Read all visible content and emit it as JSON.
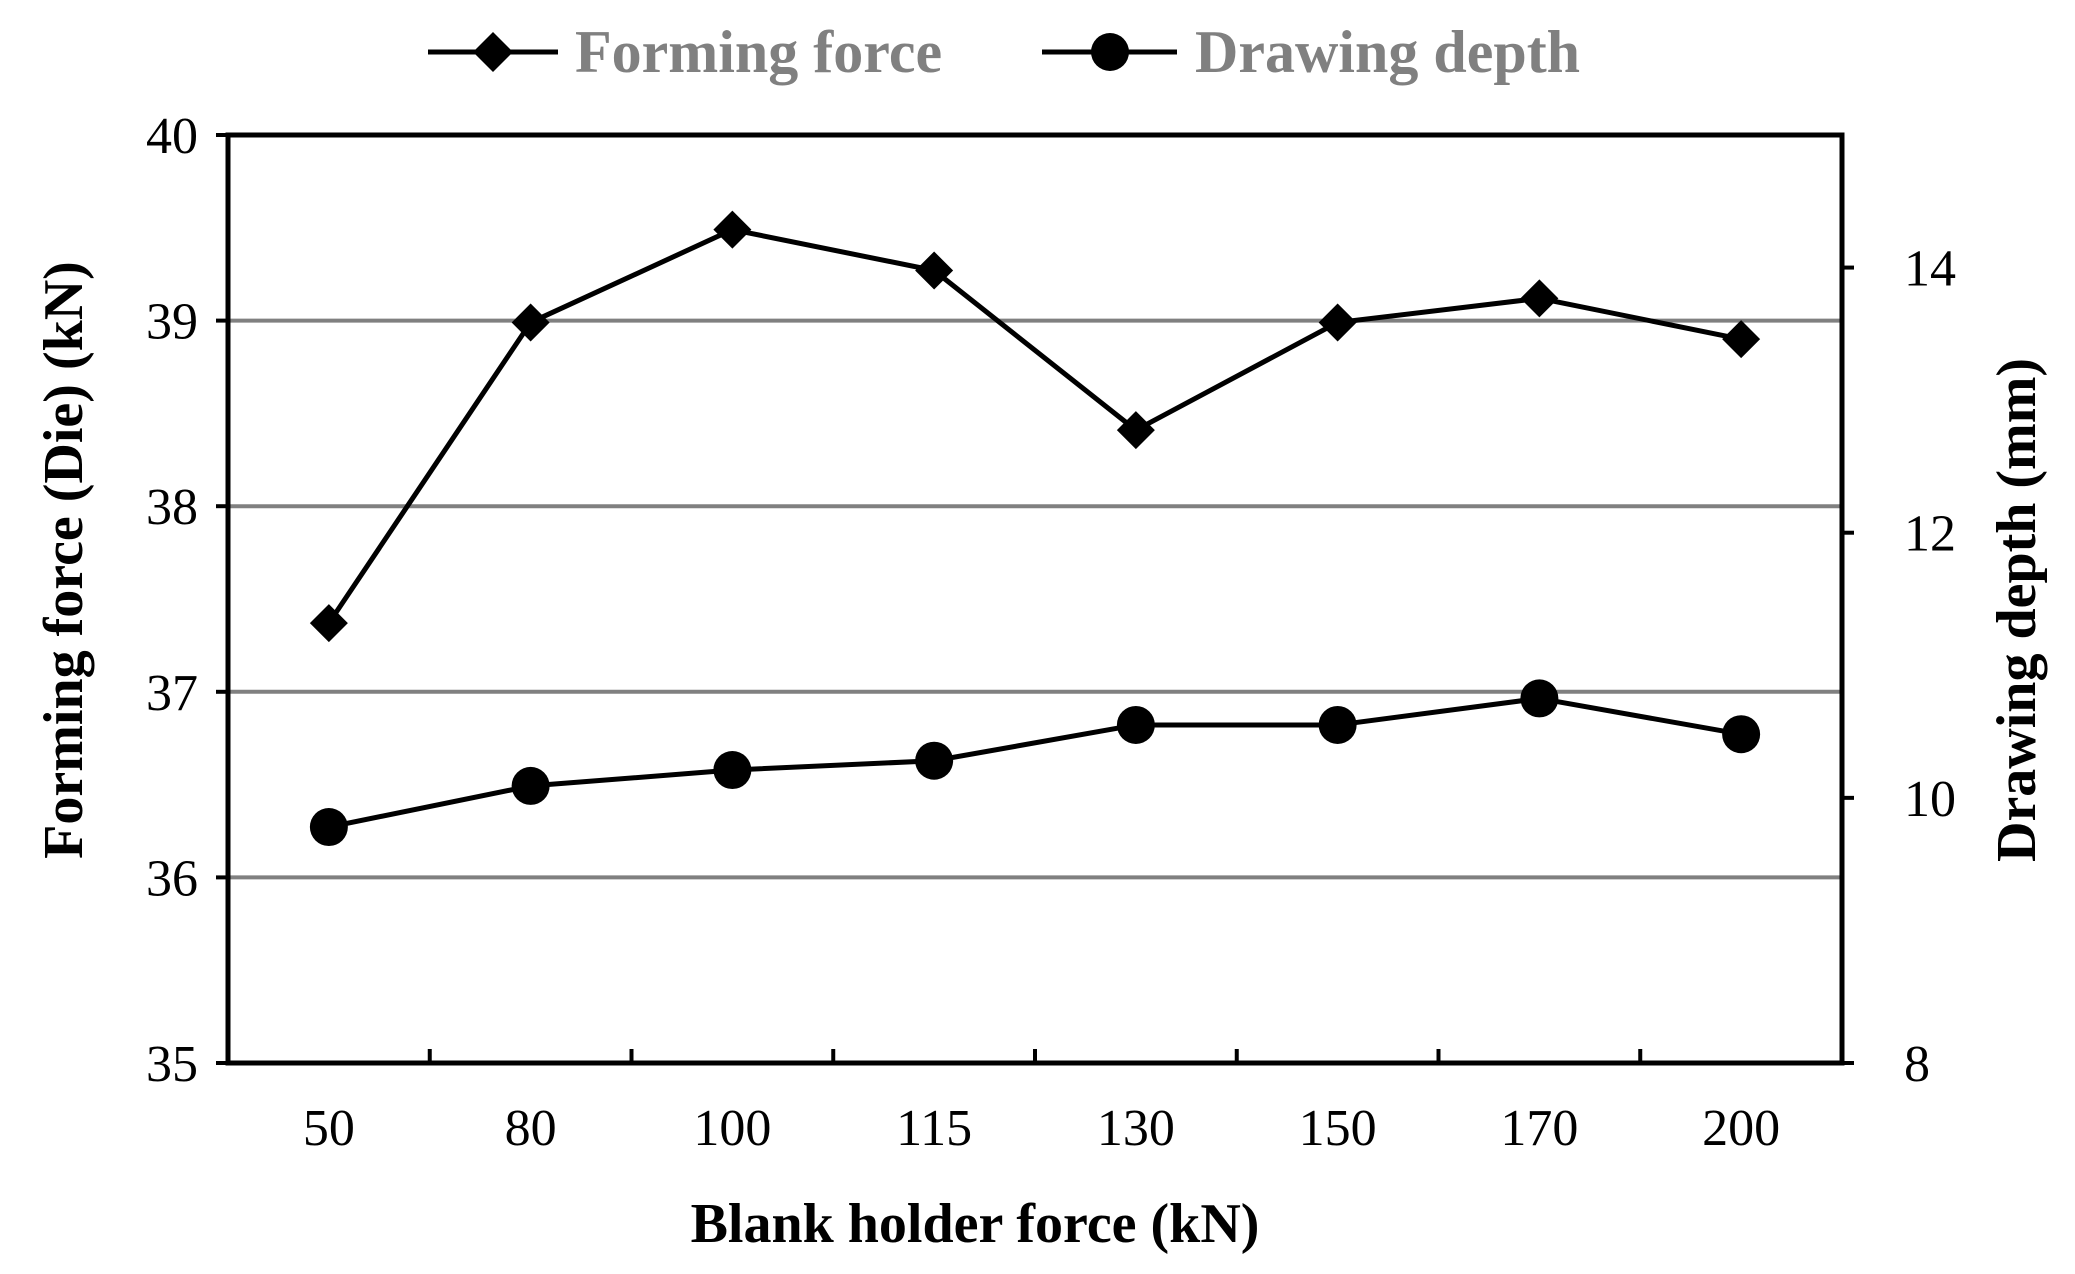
{
  "chart_data": {
    "type": "line",
    "categories": [
      "50",
      "80",
      "100",
      "115",
      "130",
      "150",
      "170",
      "200"
    ],
    "series": [
      {
        "name": "Forming force",
        "axis": "left",
        "marker": "diamond",
        "values": [
          37.37,
          38.99,
          39.49,
          39.27,
          38.41,
          38.99,
          39.12,
          38.9
        ]
      },
      {
        "name": "Drawing depth",
        "axis": "right",
        "marker": "circle",
        "values": [
          9.78,
          10.09,
          10.21,
          10.28,
          10.55,
          10.55,
          10.75,
          10.48
        ]
      }
    ],
    "xlabel": "Blank holder  force (kN)",
    "ylabel": "Forming  force (Die)  (kN)",
    "y2label": "Drawing  depth  (mm)",
    "ylim": [
      35,
      40
    ],
    "y2lim": [
      8,
      15
    ],
    "yticks": [
      "35",
      "36",
      "37",
      "38",
      "39",
      "40"
    ],
    "y2ticks": [
      "8",
      "10",
      "12",
      "14"
    ],
    "grid": true,
    "legend": "top-center",
    "colors": {
      "line": "#000000",
      "grid": "#808080",
      "legend_text": "#808080"
    }
  }
}
